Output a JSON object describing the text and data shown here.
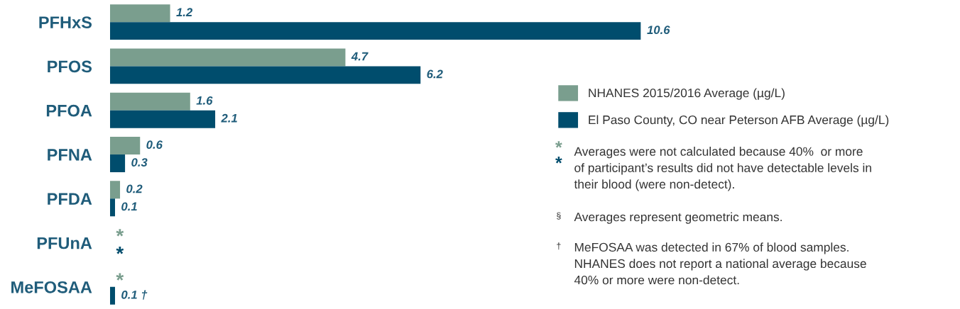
{
  "chart_data": {
    "type": "bar",
    "orientation": "horizontal",
    "categories": [
      "PFHxS",
      "PFOS",
      "PFOA",
      "PFNA",
      "PFDA",
      "PFUnA",
      "MeFOSAA"
    ],
    "series": [
      {
        "name": "NHANES 2015/2016 Average (µg/L)",
        "color": "#7a9e8e",
        "values": [
          1.2,
          4.7,
          1.6,
          0.6,
          0.2,
          null,
          null
        ],
        "value_labels": [
          "1.2",
          "4.7",
          "1.6",
          "0.6",
          "0.2",
          "*",
          "*"
        ]
      },
      {
        "name": "El Paso County, CO near Peterson AFB Average (µg/L)",
        "color": "#004d6d",
        "values": [
          10.6,
          6.2,
          2.1,
          0.3,
          0.1,
          null,
          0.1
        ],
        "value_labels": [
          "10.6",
          "6.2",
          "2.1",
          "0.3",
          "0.1",
          "*",
          "0.1 †"
        ]
      }
    ],
    "tick_labels": "y",
    "legend": "right",
    "annotations": [
      "** Averages were not calculated because 40%  or more\nof participant’s results did not have detectable levels in\ntheir blood (were non-detect).",
      "§ Averages represent geometric means.",
      "† MeFOSAA was detected in 67% of blood samples.\nNHANES does not report a national average because\n40% or more were non-detect."
    ]
  }
}
